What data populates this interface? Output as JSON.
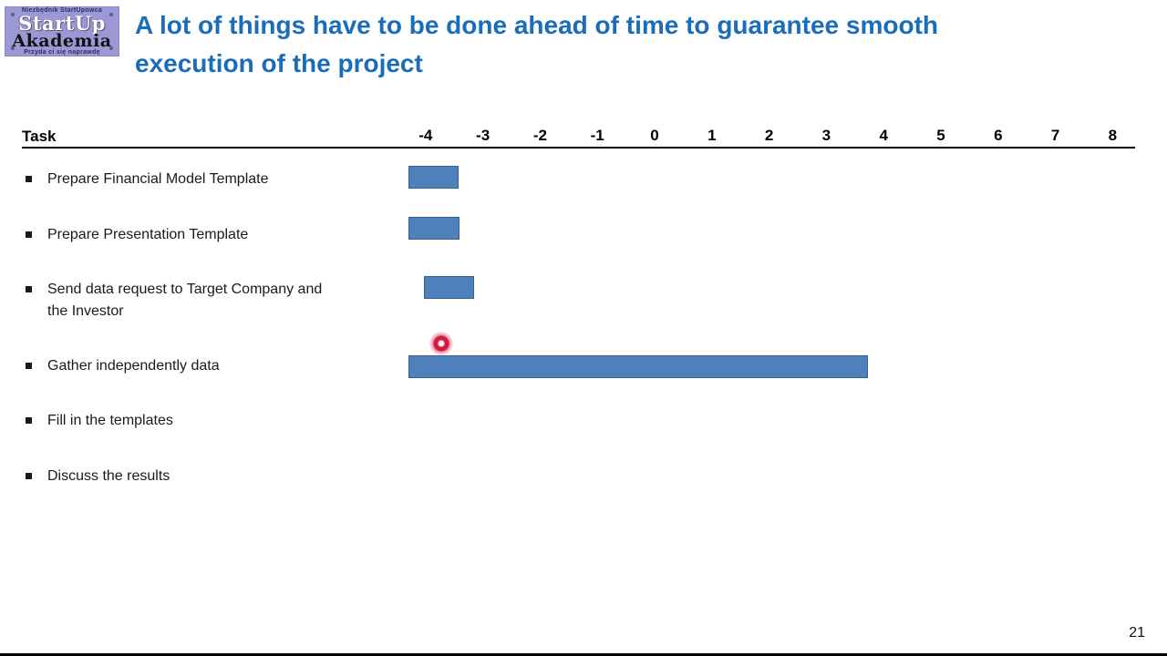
{
  "logo": {
    "tagline_top": "Niezbędnik StartUpowca",
    "name_line1": "StartUp",
    "name_line2": "Akademia",
    "tagline_bottom": "Przyda ci się naprawdę"
  },
  "header": {
    "title_line1": "A lot of things have to be done ahead of time to guarantee smooth",
    "title_line2": "execution of the project",
    "title_color": "#1a6db8"
  },
  "chart_data": {
    "type": "gantt",
    "orientation": "horizontal",
    "header_label": "Task",
    "x_ticks": [
      -4,
      -3,
      -2,
      -1,
      0,
      1,
      2,
      3,
      4,
      5,
      6,
      7,
      8
    ],
    "x_range": [
      -4.5,
      8.5
    ],
    "x_unit": "weeks relative to project start",
    "bar_color": "#4f81bd",
    "bar_border_color": "#38608f",
    "grid": false,
    "tasks": [
      {
        "label": "Prepare Financial Model Template",
        "start": -4.3,
        "end": -3.42
      },
      {
        "label": "Prepare Presentation Template",
        "start": -4.3,
        "end": -3.4
      },
      {
        "label": "Send data request to Target Company and the Investor",
        "start": -4.03,
        "end": -3.15
      },
      {
        "label": "Gather independently data",
        "start": -4.3,
        "end": 3.73
      },
      {
        "label": "Fill in the templates",
        "start": null,
        "end": null
      },
      {
        "label": "Discuss the results",
        "start": null,
        "end": null
      }
    ]
  },
  "pointer": {
    "name": "laser-pointer-dot",
    "color": "#d01940"
  },
  "footer": {
    "page_number": "21"
  }
}
